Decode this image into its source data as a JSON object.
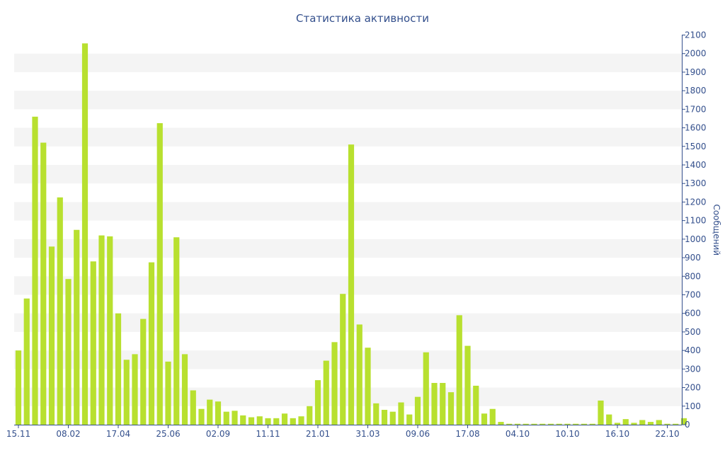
{
  "colors": {
    "bar": "#b8e02f",
    "band": "#f4f4f4",
    "axis": "#334f8c",
    "text": "#334f8c"
  },
  "chart_data": {
    "type": "bar",
    "title": "Статистика активности",
    "xlabel": "",
    "ylabel": "Сообщений",
    "ylim": [
      0,
      2100
    ],
    "yticks": [
      0,
      100,
      200,
      300,
      400,
      500,
      600,
      700,
      800,
      900,
      1000,
      1100,
      1200,
      1300,
      1400,
      1500,
      1600,
      1700,
      1800,
      1900,
      2000,
      2100
    ],
    "x_tick_labels": [
      "15.11",
      "08.02",
      "17.04",
      "25.06",
      "02.09",
      "11.11",
      "21.01",
      "31.03",
      "09.06",
      "17.08",
      "04.10",
      "10.10",
      "16.10",
      "22.10"
    ],
    "x_tick_bar_index": [
      0,
      6,
      12,
      18,
      24,
      30,
      36,
      42,
      48,
      54,
      60,
      66,
      72,
      78
    ],
    "grid": "alternating horizontal bands",
    "legend": "none",
    "values": [
      400,
      680,
      1660,
      1520,
      960,
      1225,
      785,
      1050,
      2055,
      880,
      1020,
      1015,
      600,
      350,
      380,
      570,
      875,
      1625,
      340,
      1010,
      380,
      185,
      85,
      135,
      125,
      70,
      75,
      50,
      40,
      45,
      35,
      35,
      60,
      35,
      45,
      100,
      240,
      345,
      445,
      705,
      1510,
      540,
      415,
      115,
      80,
      70,
      120,
      55,
      150,
      390,
      225,
      225,
      175,
      590,
      425,
      210,
      60,
      85,
      15,
      5,
      5,
      5,
      5,
      5,
      5,
      5,
      5,
      5,
      5,
      5,
      130,
      55,
      10,
      30,
      10,
      25,
      15,
      25,
      5,
      5,
      35
    ]
  }
}
